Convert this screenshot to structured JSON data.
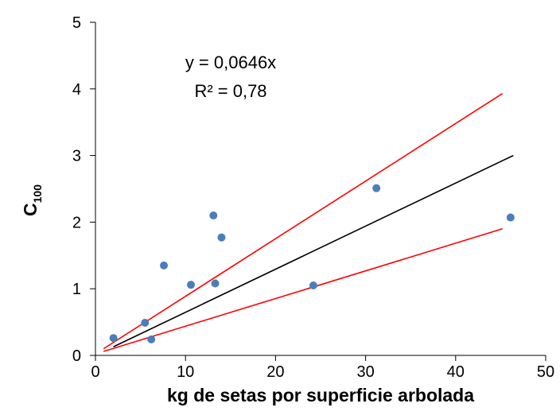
{
  "chart_data": {
    "type": "scatter",
    "xlabel": "kg de setas por superficie arbolada",
    "ylabel": {
      "text": "C",
      "subscript": "100"
    },
    "annotations": [
      "y = 0,0646x",
      "R² = 0,78"
    ],
    "xlim": [
      0,
      50
    ],
    "xticks": [
      0,
      10,
      20,
      30,
      40,
      50
    ],
    "ylim": [
      0,
      5
    ],
    "yticks": [
      0,
      1,
      2,
      3,
      4,
      5
    ],
    "grid": false,
    "color": "#4a7ebb",
    "x": [
      2.0,
      5.5,
      6.2,
      7.6,
      10.6,
      13.1,
      13.3,
      14.0,
      24.2,
      31.2,
      46.1
    ],
    "values": [
      0.26,
      0.49,
      0.24,
      1.35,
      1.06,
      2.1,
      1.08,
      1.77,
      1.05,
      2.51,
      2.07
    ],
    "lines": [
      {
        "color": "#000000",
        "x": [
          2.0,
          46.4
        ],
        "values": [
          0.13,
          3.0
        ]
      },
      {
        "color": "#ff0000",
        "x": [
          0.9,
          45.2
        ],
        "values": [
          0.1,
          3.93
        ]
      },
      {
        "color": "#ff0000",
        "x": [
          0.9,
          45.2
        ],
        "values": [
          0.06,
          1.9
        ]
      }
    ]
  }
}
